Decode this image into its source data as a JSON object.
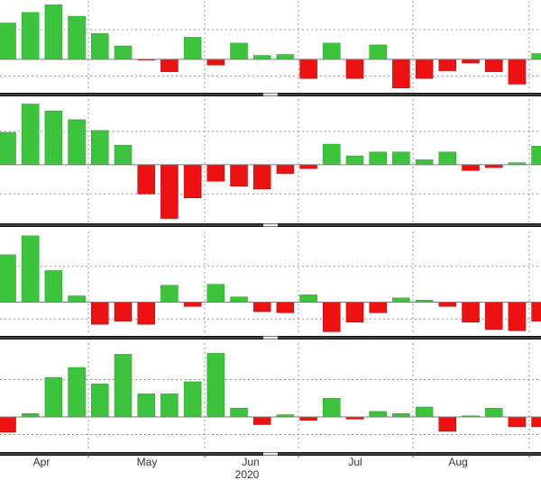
{
  "colors": {
    "up": "#3cc43c",
    "up_edge": "#2a9a2a",
    "down": "#ee1111",
    "down_edge": "#b00000",
    "panel_border": "#111111",
    "grid": "#9a9a9a",
    "background": "#ffffff"
  },
  "chart_data": [
    {
      "type": "bar",
      "panel": 1,
      "title": "",
      "xlabel": "",
      "ylabel": "",
      "grid": true,
      "categories": [
        "2020-03-27",
        "2020-04-03",
        "2020-04-10",
        "2020-04-17",
        "2020-04-24",
        "2020-05-01",
        "2020-05-08",
        "2020-05-15",
        "2020-05-22",
        "2020-05-29",
        "2020-06-05",
        "2020-06-12",
        "2020-06-19",
        "2020-06-26",
        "2020-07-03",
        "2020-07-10",
        "2020-07-17",
        "2020-07-24",
        "2020-07-31",
        "2020-08-07",
        "2020-08-14",
        "2020-08-21",
        "2020-08-28",
        "2020-09-04"
      ],
      "values": [
        38,
        49,
        57,
        45,
        27,
        14,
        -1,
        -13,
        23,
        -6,
        17,
        4,
        5,
        -20,
        17,
        -20,
        15,
        -30,
        -20,
        -12,
        -4,
        -13,
        -26,
        6
      ],
      "ylim": [
        -35,
        62
      ]
    },
    {
      "type": "bar",
      "panel": 2,
      "title": "",
      "xlabel": "",
      "ylabel": "",
      "grid": true,
      "categories": [
        "2020-03-27",
        "2020-04-03",
        "2020-04-10",
        "2020-04-17",
        "2020-04-24",
        "2020-05-01",
        "2020-05-08",
        "2020-05-15",
        "2020-05-22",
        "2020-05-29",
        "2020-06-05",
        "2020-06-12",
        "2020-06-19",
        "2020-06-26",
        "2020-07-03",
        "2020-07-10",
        "2020-07-17",
        "2020-07-24",
        "2020-07-31",
        "2020-08-07",
        "2020-08-14",
        "2020-08-21",
        "2020-08-28",
        "2020-09-04"
      ],
      "values": [
        33,
        62,
        55,
        46,
        35,
        20,
        -30,
        -55,
        -34,
        -17,
        -22,
        -25,
        -9,
        -4,
        21,
        9,
        13,
        13,
        5,
        13,
        -6,
        -3,
        2,
        19
      ],
      "ylim": [
        -60,
        68
      ]
    },
    {
      "type": "bar",
      "panel": 3,
      "title": "",
      "xlabel": "",
      "ylabel": "",
      "grid": true,
      "categories": [
        "2020-03-27",
        "2020-04-03",
        "2020-04-10",
        "2020-04-17",
        "2020-04-24",
        "2020-05-01",
        "2020-05-08",
        "2020-05-15",
        "2020-05-22",
        "2020-05-29",
        "2020-06-05",
        "2020-06-12",
        "2020-06-19",
        "2020-06-26",
        "2020-07-03",
        "2020-07-10",
        "2020-07-17",
        "2020-07-24",
        "2020-07-31",
        "2020-08-07",
        "2020-08-14",
        "2020-08-21",
        "2020-08-28",
        "2020-09-04"
      ],
      "values": [
        45,
        63,
        30,
        6,
        -21,
        -18,
        -21,
        16,
        -4,
        17,
        5,
        -9,
        -10,
        7,
        -28,
        -19,
        -10,
        4,
        2,
        -4,
        -19,
        -26,
        -27,
        -18
      ],
      "ylim": [
        -32,
        68
      ]
    },
    {
      "type": "bar",
      "panel": 4,
      "title": "",
      "xlabel": "",
      "ylabel": "",
      "grid": true,
      "categories": [
        "2020-03-27",
        "2020-04-03",
        "2020-04-10",
        "2020-04-17",
        "2020-04-24",
        "2020-05-01",
        "2020-05-08",
        "2020-05-15",
        "2020-05-22",
        "2020-05-29",
        "2020-06-05",
        "2020-06-12",
        "2020-06-19",
        "2020-06-26",
        "2020-07-03",
        "2020-07-10",
        "2020-07-17",
        "2020-07-24",
        "2020-07-31",
        "2020-08-07",
        "2020-08-14",
        "2020-08-21",
        "2020-08-28",
        "2020-09-04"
      ],
      "values": [
        -14,
        3,
        36,
        45,
        30,
        57,
        21,
        21,
        32,
        58,
        8,
        -7,
        2,
        -3,
        17,
        -2,
        5,
        3,
        9,
        -13,
        1,
        8,
        -9,
        -9
      ],
      "ylim": [
        -32,
        68
      ]
    }
  ],
  "x_axis": {
    "months": [
      {
        "label": "Apr",
        "date": "2020-04-14"
      },
      {
        "label": "May",
        "date": "2020-05-15"
      },
      {
        "label": "Jun",
        "date": "2020-06-14"
      },
      {
        "label": "Jul",
        "date": "2020-07-15"
      },
      {
        "label": "Aug",
        "date": "2020-08-15"
      }
    ],
    "year_label": "2020"
  }
}
